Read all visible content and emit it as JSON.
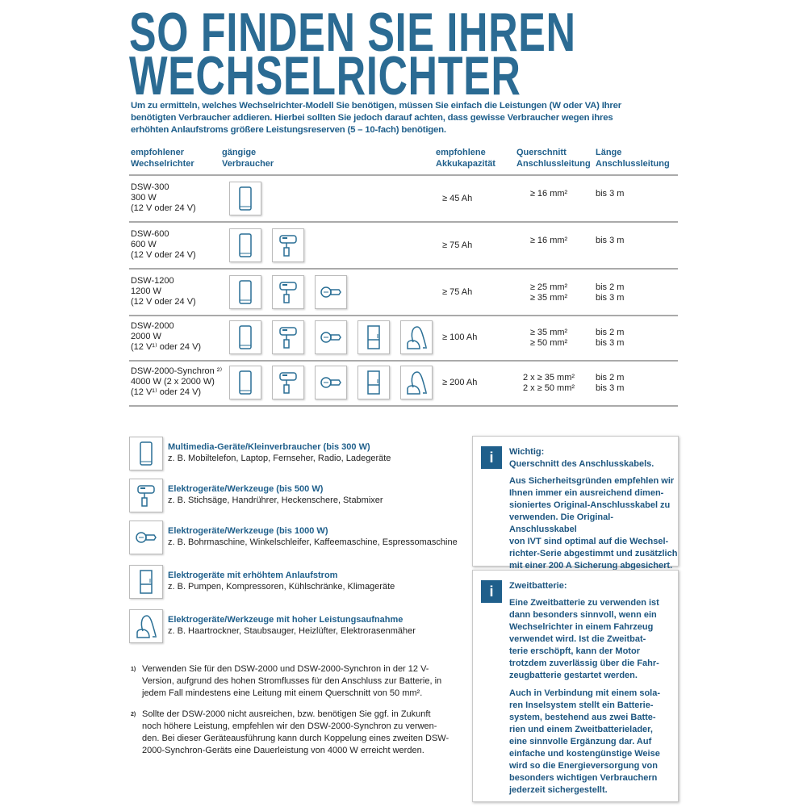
{
  "title": {
    "line1": "SO FINDEN SIE IHREN",
    "line2": "WECHSELRICHTER"
  },
  "intro": "Um zu ermitteln, welches Wechselrichter-Modell Sie benötigen, müssen Sie einfach die Leistungen (W oder VA) Ihrer benötigten Verbraucher addieren. Hierbei sollten Sie jedoch darauf achten, dass gewisse Verbraucher wegen ihres erhöhten Anlaufstroms größere Leistungsreserven (5 – 10-fach) benötigen.",
  "table": {
    "headers": [
      "empfohlener\nWechselrichter",
      "gängige\nVerbraucher",
      "empfohlene\nAkkukapazität",
      "Querschnitt\nAnschlussleitung",
      "Länge\nAnschlussleitung"
    ],
    "rows": [
      {
        "name": "DSW-300",
        "power": "300 W",
        "voltage": "(12 V oder 24 V)",
        "icons": [
          "phone"
        ],
        "capacity": "≥ 45 Ah",
        "cross_section": "≥ 16 mm²",
        "length": "bis 3 m"
      },
      {
        "name": "DSW-600",
        "power": "600 W",
        "voltage": "(12 V oder 24 V)",
        "icons": [
          "phone",
          "mixer"
        ],
        "capacity": "≥ 75 Ah",
        "cross_section": "≥ 16 mm²",
        "length": "bis 3 m"
      },
      {
        "name": "DSW-1200",
        "power": "1200 W",
        "voltage": "(12 V oder 24 V)",
        "icons": [
          "phone",
          "mixer",
          "grinder"
        ],
        "capacity": "≥ 75 Ah",
        "cross_section": "≥ 25 mm²\n≥ 35 mm²",
        "length": "bis 2 m\nbis 3 m"
      },
      {
        "name": "DSW-2000",
        "power": "2000 W",
        "voltage": "(12 V¹⁾ oder 24 V)",
        "icons": [
          "phone",
          "mixer",
          "grinder",
          "fridge",
          "vacuum"
        ],
        "capacity": "≥ 100 Ah",
        "cross_section": "≥ 35 mm²\n≥ 50 mm²",
        "length": "bis 2 m\nbis 3 m"
      },
      {
        "name": "DSW-2000-Synchron ²⁾",
        "power": "4000 W (2 x 2000 W)",
        "voltage": "(12 V¹⁾ oder 24 V)",
        "icons": [
          "phone",
          "mixer",
          "grinder",
          "fridge",
          "vacuum"
        ],
        "capacity": "≥ 200 Ah",
        "cross_section": "2 x ≥ 35 mm²\n2 x ≥ 50 mm²",
        "length": "bis 2 m\nbis 3 m"
      }
    ]
  },
  "legend": [
    {
      "icon": "phone",
      "title": "Multimedia-Geräte/Kleinverbraucher (bis 300 W)",
      "desc": "z. B. Mobiltelefon, Laptop, Fernseher, Radio, Ladegeräte"
    },
    {
      "icon": "mixer",
      "title": "Elektrogeräte/Werkzeuge (bis 500 W)",
      "desc": "z. B. Stichsäge, Handrührer, Heckenschere, Stabmixer"
    },
    {
      "icon": "grinder",
      "title": "Elektrogeräte/Werkzeuge (bis 1000 W)",
      "desc": "z. B. Bohrmaschine, Winkelschleifer, Kaffeemaschine, Espressomaschine"
    },
    {
      "icon": "fridge",
      "title": "Elektrogeräte mit erhöhtem Anlaufstrom",
      "desc": "z. B. Pumpen, Kompressoren, Kühlschränke, Klimageräte"
    },
    {
      "icon": "vacuum",
      "title": "Elektrogeräte/Werkzeuge mit hoher Leistungsaufnahme",
      "desc": "z. B. Haartrockner, Staubsauger, Heizlüfter, Elektrorasenmäher"
    }
  ],
  "footnotes": [
    {
      "mark": "1)",
      "text": "Verwenden Sie für den DSW-2000 und DSW-2000-Synchron in der 12 V-\nVersion, aufgrund des hohen Stromflusses für den Anschluss zur Batterie, in\njedem Fall mindestens eine Leitung mit einem Querschnitt von 50 mm²."
    },
    {
      "mark": "2)",
      "text": "Sollte der DSW-2000 nicht ausreichen, bzw. benötigen Sie ggf. in Zukunft\nnoch höhere Leistung, empfehlen wir den DSW-2000-Synchron zu verwen-\nden. Bei dieser Geräteausführung kann durch Koppelung eines zweiten DSW-\n2000-Synchron-Geräts eine Dauerleistung von 4000 W erreicht werden."
    }
  ],
  "info_boxes": [
    {
      "icon_label": "i",
      "heading": "Wichtig:\nQuerschnitt des Anschlusskabels.",
      "paragraphs": [
        "Aus Sicherheitsgründen empfehlen wir\nIhnen immer ein ausreichend dimen-\nsioniertes Original-Anschlusskabel zu\nverwenden. Die Original-Anschlusskabel\nvon IVT sind optimal auf die Wechsel-\nrichter-Serie abgestimmt und zusätzlich\nmit einer 200 A Sicherung abgesichert."
      ]
    },
    {
      "icon_label": "i",
      "heading": "Zweitbatterie:",
      "paragraphs": [
        "Eine Zweitbatterie zu verwenden ist\ndann besonders sinnvoll, wenn ein\nWechselrichter in einem Fahrzeug\nverwendet wird. Ist die Zweitbat-\nterie erschöpft, kann der Motor\ntrotzdem zuverlässig über die Fahr-\nzeugbatterie gestartet werden.",
        "Auch in Verbindung mit einem sola-\nren Inselsystem stellt ein Batterie-\nsystem, bestehend aus zwei Batte-\nrien und einem Zweitbatterielader,\neine sinnvolle Ergänzung dar. Auf\neinfache und kostengünstige Weise\nwird so die Energieversorgung von\nbesonders wichtigen Verbrauchern\njederzeit sichergestellt."
      ]
    }
  ],
  "colors": {
    "accent": "#2b6b93",
    "text_blue": "#1f5f8b",
    "icon_stroke": "#2a6f95"
  }
}
